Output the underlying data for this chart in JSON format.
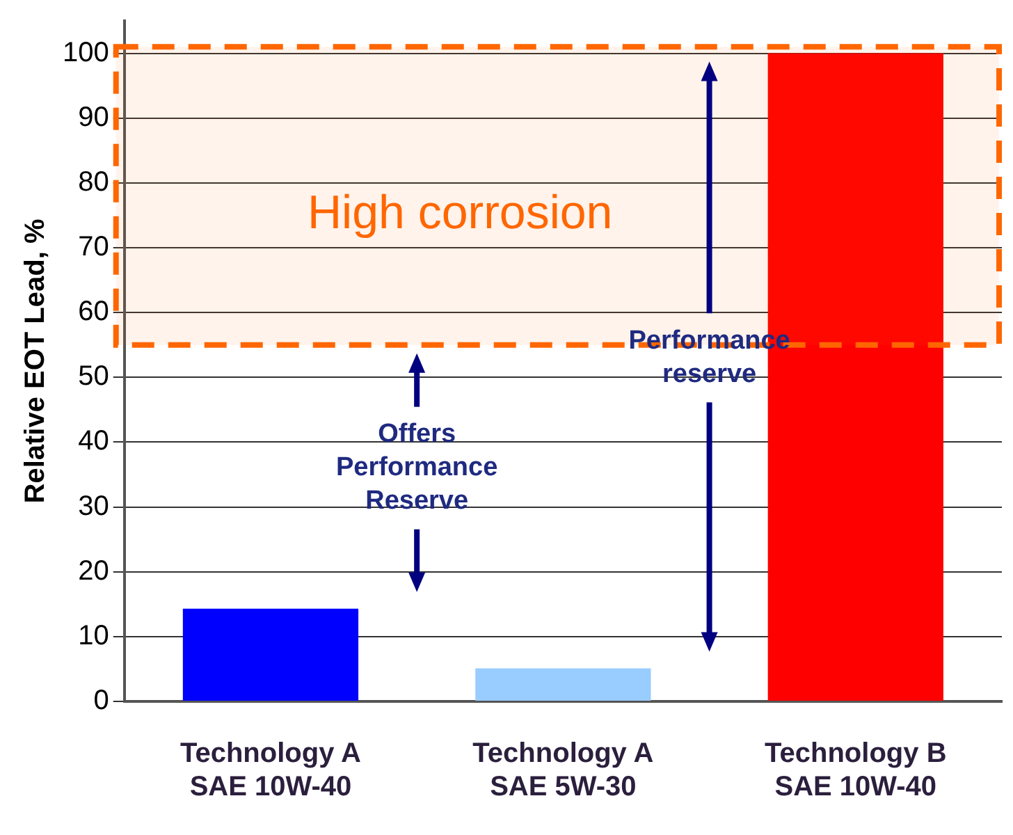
{
  "chart_data": {
    "type": "bar",
    "ylabel": "Relative EOT Lead, %",
    "categories": [
      "Technology A\nSAE 10W-40",
      "Technology A\nSAE 5W-30",
      "Technology B\nSAE 10W-40"
    ],
    "values": [
      14.3,
      5.1,
      100
    ],
    "colors": [
      "#0000ff",
      "#99ccff",
      "#ff0000"
    ],
    "ylim": [
      0,
      105
    ],
    "yticks": [
      0,
      10,
      20,
      30,
      40,
      50,
      60,
      70,
      80,
      90,
      100
    ],
    "grid": "y",
    "legend": false,
    "bands": [
      {
        "axis": "y",
        "from": 55,
        "to": 101,
        "label": "High corrosion",
        "color": "#ff6600"
      }
    ],
    "annotations": [
      "Offers\nPerformance\nReserve",
      "Performance\nreserve"
    ]
  }
}
